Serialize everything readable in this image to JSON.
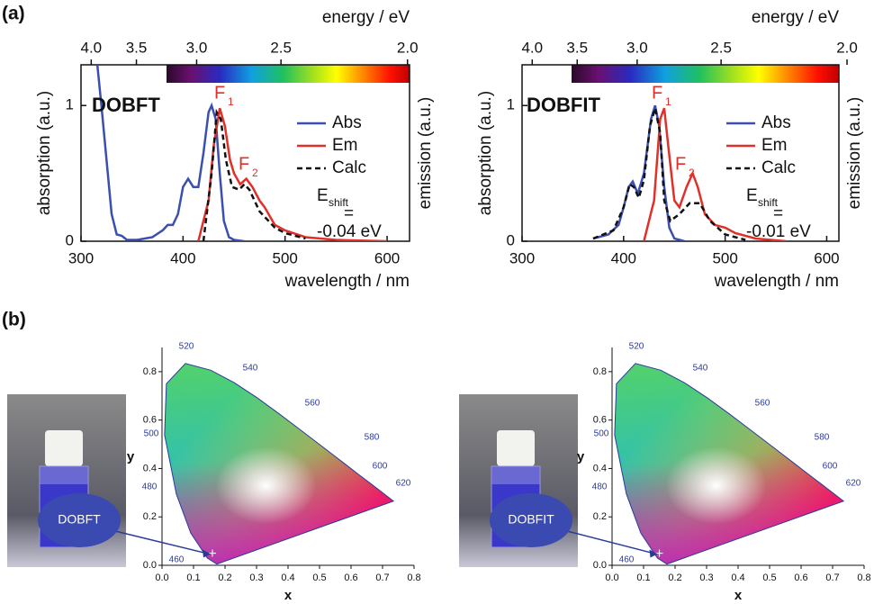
{
  "panels": [
    "(a)",
    "(b)"
  ],
  "chart_data": [
    {
      "type": "line",
      "label": "DOBFT",
      "xlabel": "wavelength / nm",
      "ylabel": "absorption (a.u.)",
      "y2label": "emission (a.u.)",
      "x2label": "energy / eV",
      "xlim": [
        300,
        622
      ],
      "xticks": [
        300,
        400,
        500,
        600
      ],
      "ylim": [
        0,
        1.3
      ],
      "yticks": [
        0,
        1
      ],
      "x2ticks": [
        {
          "value": 4,
          "label": "4.0"
        },
        3.5,
        {
          "value": 3,
          "label": "3.0"
        },
        2.5,
        {
          "value": 2,
          "label": "2.0"
        }
      ],
      "series": [
        {
          "name": "Abs",
          "color": "#3a4fb0",
          "style": "solid",
          "x": [
            316,
            320,
            325,
            330,
            335,
            340,
            345,
            355,
            370,
            380,
            385,
            390,
            395,
            400,
            405,
            410,
            415,
            420,
            425,
            428,
            432,
            436,
            440,
            445,
            450,
            460
          ],
          "values": [
            1.3,
            1.0,
            0.6,
            0.2,
            0.05,
            0.04,
            0.01,
            0.01,
            0.03,
            0.08,
            0.12,
            0.12,
            0.2,
            0.4,
            0.46,
            0.4,
            0.4,
            0.65,
            0.95,
            1.0,
            0.9,
            0.5,
            0.15,
            0.03,
            0.01,
            0
          ]
        },
        {
          "name": "Em",
          "color": "#e0302a",
          "style": "solid",
          "x": [
            415,
            425,
            430,
            436,
            441,
            446,
            450,
            456,
            462,
            468,
            475,
            480,
            490,
            500,
            520,
            550,
            600
          ],
          "values": [
            0,
            0.3,
            0.7,
            0.98,
            0.85,
            0.6,
            0.5,
            0.42,
            0.46,
            0.4,
            0.3,
            0.25,
            0.12,
            0.08,
            0.03,
            0.01,
            0
          ]
        },
        {
          "name": "Calc",
          "color": "#111111",
          "style": "dashed",
          "x": [
            420,
            428,
            433,
            437,
            442,
            448,
            455,
            460,
            465,
            475,
            490,
            500,
            520
          ],
          "values": [
            0,
            0.5,
            0.95,
            0.9,
            0.6,
            0.4,
            0.38,
            0.42,
            0.38,
            0.22,
            0.1,
            0.06,
            0.02
          ]
        }
      ],
      "peaks": [
        {
          "name": "F",
          "sub": "1"
        },
        {
          "name": "F",
          "sub": "2"
        }
      ],
      "shift": {
        "name": "E",
        "sub": "shift",
        "eq": "=",
        "value": "-0.04 eV"
      }
    },
    {
      "type": "line",
      "label": "DOBFIT",
      "xlabel": "wavelength / nm",
      "ylabel": "absorption (a.u.)",
      "y2label": "emission (a.u.)",
      "x2label": "energy / eV",
      "xlim": [
        300,
        612
      ],
      "xticks": [
        300,
        400,
        500,
        600
      ],
      "ylim": [
        0,
        1.3
      ],
      "yticks": [
        0,
        1
      ],
      "x2ticks": [
        {
          "value": 4,
          "label": "4.0"
        },
        3.5,
        {
          "value": 3,
          "label": "3.0"
        },
        2.5,
        {
          "value": 2,
          "label": "2.0"
        }
      ],
      "series": [
        {
          "name": "Abs",
          "color": "#3a4fb0",
          "style": "solid",
          "x": [
            370,
            385,
            395,
            400,
            405,
            409,
            414,
            420,
            427,
            431,
            435,
            440,
            445,
            450,
            460
          ],
          "values": [
            0.02,
            0.05,
            0.12,
            0.25,
            0.4,
            0.44,
            0.35,
            0.5,
            0.9,
            1.0,
            0.85,
            0.4,
            0.1,
            0.02,
            0
          ]
        },
        {
          "name": "Em",
          "color": "#e0302a",
          "style": "solid",
          "x": [
            420,
            430,
            436,
            440,
            444,
            450,
            455,
            462,
            468,
            473,
            480,
            490,
            500,
            510,
            530,
            560
          ],
          "values": [
            0,
            0.3,
            0.9,
            0.98,
            0.7,
            0.3,
            0.25,
            0.4,
            0.5,
            0.4,
            0.2,
            0.12,
            0.1,
            0.06,
            0.02,
            0
          ]
        },
        {
          "name": "Calc",
          "color": "#111111",
          "style": "dashed",
          "x": [
            370,
            390,
            400,
            406,
            410,
            415,
            420,
            426,
            431,
            436,
            440,
            446,
            455,
            465,
            475,
            485,
            500,
            520
          ],
          "values": [
            0.02,
            0.08,
            0.25,
            0.42,
            0.4,
            0.32,
            0.45,
            0.85,
            0.98,
            0.8,
            0.3,
            0.15,
            0.2,
            0.28,
            0.28,
            0.15,
            0.05,
            0.01
          ]
        }
      ],
      "peaks": [
        {
          "name": "F",
          "sub": "1"
        },
        {
          "name": "F",
          "sub": "2"
        }
      ],
      "shift": {
        "name": "E",
        "sub": "shift",
        "eq": "=",
        "value": "-0.01 eV"
      }
    },
    {
      "type": "scatter",
      "xlabel": "x",
      "ylabel": "y",
      "xlim": [
        0,
        0.8
      ],
      "ylim": [
        0,
        0.9
      ],
      "xticks": [
        {
          "value": 0,
          "label": "0.0"
        },
        0.1,
        0.2,
        0.3,
        0.4,
        0.5,
        0.6,
        0.7,
        0.8
      ],
      "yticks": [
        {
          "value": 0,
          "label": "0.0"
        },
        0.2,
        0.4,
        0.6,
        0.8
      ],
      "wavelength_labels": [
        460,
        480,
        500,
        520,
        540,
        560,
        580,
        600,
        620
      ],
      "sample": "DOBFT",
      "x": [
        0.16
      ],
      "values": [
        0.05
      ],
      "color": "#2a3a9a"
    },
    {
      "type": "scatter",
      "xlabel": "x",
      "ylabel": "y",
      "xlim": [
        0,
        0.8
      ],
      "ylim": [
        0,
        0.9
      ],
      "xticks": [
        {
          "value": 0,
          "label": "0.0"
        },
        0.1,
        0.2,
        0.3,
        0.4,
        0.5,
        0.6,
        0.7,
        0.8
      ],
      "yticks": [
        {
          "value": 0,
          "label": "0.0"
        },
        0.2,
        0.4,
        0.6,
        0.8
      ],
      "wavelength_labels": [
        460,
        480,
        500,
        520,
        540,
        560,
        580,
        600,
        620
      ],
      "sample": "DOBFIT",
      "x": [
        0.15
      ],
      "values": [
        0.05
      ],
      "color": "#2a3a9a"
    }
  ]
}
